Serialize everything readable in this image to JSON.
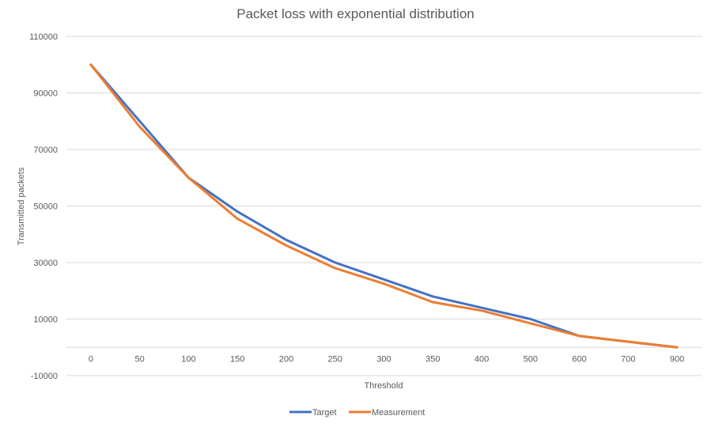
{
  "chart_data": {
    "type": "line",
    "title": "Packet loss with exponential distribution",
    "xlabel": "Threshold",
    "ylabel": "Transmitted packets",
    "categories": [
      "0",
      "50",
      "100",
      "150",
      "200",
      "250",
      "300",
      "350",
      "400",
      "500",
      "600",
      "700",
      "900"
    ],
    "ylim": [
      -10000,
      110000
    ],
    "yticks": [
      -10000,
      10000,
      30000,
      50000,
      70000,
      90000,
      110000
    ],
    "grid": true,
    "legend_position": "bottom",
    "series": [
      {
        "name": "Target",
        "color": "#4472C4",
        "values": [
          100000,
          80000,
          60000,
          48000,
          38000,
          30000,
          24000,
          18000,
          14000,
          10000,
          4000,
          2000,
          0
        ]
      },
      {
        "name": "Measurement",
        "color": "#ED7D31",
        "values": [
          100000,
          78000,
          60000,
          45500,
          36000,
          28000,
          22500,
          16000,
          13000,
          8500,
          4000,
          2000,
          0
        ]
      }
    ]
  }
}
